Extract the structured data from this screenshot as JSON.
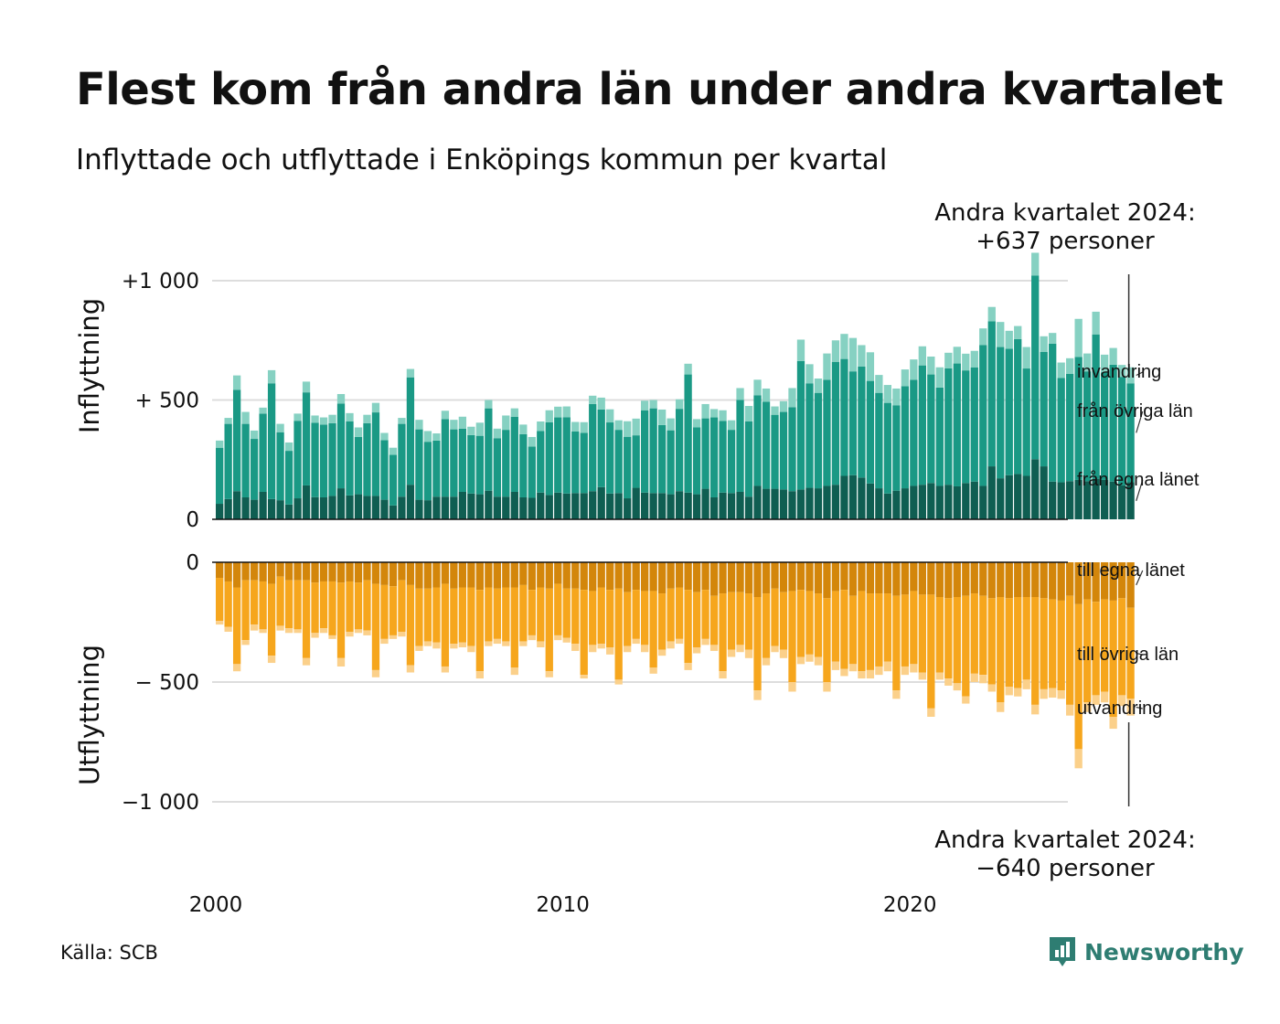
{
  "title": "Flest kom från andra län under andra kvartalet",
  "subtitle": "Inflyttade och utflyttade i Enköpings kommun per kvartal",
  "annotation_top": {
    "line1": "Andra kvartalet 2024:",
    "line2": "+637 personer"
  },
  "annotation_bottom": {
    "line1": "Andra kvartalet 2024:",
    "line2": "−640 personer"
  },
  "source": "Källa: SCB",
  "logo": {
    "text": "Newsworthy",
    "icon": "newsworthy-logo-icon"
  },
  "colors": {
    "in_own_county": "#0f5e52",
    "in_other_counties": "#1a9985",
    "in_immigration": "#86d1c2",
    "out_own_county": "#d3860b",
    "out_other_counties": "#f6a61d",
    "out_emigration": "#fbd08a",
    "grid": "#dddddd",
    "brand": "#2e7d72"
  },
  "chart_data": [
    {
      "type": "bar",
      "stacked": true,
      "panel": "Inflyttning",
      "ylabel": "Inflyttning",
      "yticks": [
        {
          "value": 0,
          "label": "0"
        },
        {
          "value": 500,
          "label": "+  500"
        },
        {
          "value": 1000,
          "label": "+1 000"
        }
      ],
      "ylim": [
        0,
        1000
      ],
      "x_start": {
        "year": 2000,
        "quarter": 1
      },
      "xticks": [
        {
          "year": 2000,
          "label": "2000"
        },
        {
          "year": 2010,
          "label": "2010"
        },
        {
          "year": 2020,
          "label": "2020"
        }
      ],
      "series": [
        {
          "name": "från egna länet",
          "label": "från egna länet",
          "color": "#0f5e52",
          "values": [
            65,
            85,
            118,
            92,
            82,
            115,
            85,
            80,
            62,
            88,
            142,
            93,
            92,
            98,
            130,
            100,
            105,
            98,
            98,
            82,
            58,
            95,
            145,
            82,
            80,
            95,
            95,
            95,
            115,
            108,
            105,
            120,
            95,
            95,
            115,
            92,
            90,
            112,
            102,
            112,
            108,
            110,
            110,
            118,
            135,
            108,
            110,
            88,
            132,
            112,
            110,
            110,
            105,
            118,
            112,
            105,
            128,
            92,
            112,
            110,
            115,
            95,
            140,
            128,
            128,
            125,
            118,
            125,
            132,
            130,
            140,
            145,
            182,
            185,
            175,
            150,
            130,
            108,
            120,
            130,
            140,
            145,
            152,
            140,
            145,
            138,
            152,
            158,
            140,
            222,
            172,
            185,
            190,
            182,
            252,
            222,
            158,
            155,
            160,
            165,
            160,
            170,
            165,
            158,
            142,
            155
          ]
        },
        {
          "name": "från övriga län",
          "label": "från övriga län",
          "color": "#1a9985",
          "values": [
            235,
            315,
            425,
            308,
            255,
            328,
            485,
            285,
            225,
            325,
            390,
            312,
            305,
            305,
            355,
            310,
            240,
            305,
            350,
            250,
            212,
            305,
            450,
            295,
            245,
            235,
            325,
            282,
            265,
            245,
            245,
            345,
            245,
            280,
            315,
            265,
            215,
            258,
            305,
            315,
            320,
            258,
            252,
            365,
            325,
            298,
            265,
            258,
            220,
            345,
            355,
            285,
            268,
            345,
            495,
            280,
            295,
            335,
            300,
            265,
            385,
            315,
            380,
            365,
            310,
            325,
            352,
            538,
            438,
            400,
            445,
            515,
            490,
            435,
            465,
            430,
            400,
            380,
            358,
            428,
            445,
            500,
            455,
            412,
            488,
            515,
            472,
            478,
            590,
            608,
            550,
            530,
            565,
            450,
            770,
            480,
            578,
            437,
            450,
            515,
            460,
            605,
            450,
            490,
            455,
            415
          ]
        },
        {
          "name": "invandring",
          "label": "invandring",
          "color": "#86d1c2",
          "values": [
            30,
            25,
            60,
            50,
            35,
            25,
            55,
            35,
            35,
            30,
            45,
            30,
            30,
            35,
            40,
            35,
            40,
            35,
            40,
            30,
            30,
            25,
            35,
            40,
            45,
            30,
            35,
            40,
            50,
            35,
            55,
            35,
            40,
            60,
            35,
            40,
            40,
            40,
            50,
            45,
            45,
            40,
            45,
            35,
            50,
            55,
            40,
            65,
            70,
            40,
            35,
            65,
            50,
            40,
            45,
            35,
            60,
            35,
            45,
            40,
            50,
            65,
            65,
            55,
            35,
            45,
            80,
            90,
            80,
            60,
            110,
            90,
            105,
            140,
            90,
            120,
            75,
            75,
            70,
            70,
            85,
            80,
            75,
            85,
            65,
            70,
            70,
            70,
            70,
            60,
            105,
            75,
            55,
            90,
            95,
            65,
            45,
            65,
            65,
            160,
            75,
            95,
            75,
            70,
            50,
            67
          ]
        }
      ]
    },
    {
      "type": "bar",
      "stacked": true,
      "panel": "Utflyttning",
      "ylabel": "Utflyttning",
      "yticks": [
        {
          "value": 0,
          "label": "0"
        },
        {
          "value": -500,
          "label": "−  500"
        },
        {
          "value": -1000,
          "label": "−1 000"
        }
      ],
      "ylim": [
        -1000,
        0
      ],
      "series": [
        {
          "name": "till egna länet",
          "label": "till egna länet",
          "color": "#d3860b",
          "values": [
            -65,
            -80,
            -105,
            -75,
            -75,
            -80,
            -90,
            -60,
            -75,
            -75,
            -75,
            -85,
            -80,
            -80,
            -85,
            -80,
            -85,
            -75,
            -90,
            -95,
            -100,
            -75,
            -95,
            -110,
            -110,
            -105,
            -90,
            -110,
            -105,
            -105,
            -115,
            -105,
            -110,
            -105,
            -105,
            -95,
            -115,
            -105,
            -110,
            -90,
            -110,
            -110,
            -115,
            -120,
            -105,
            -115,
            -110,
            -125,
            -115,
            -120,
            -120,
            -130,
            -110,
            -105,
            -115,
            -125,
            -115,
            -140,
            -130,
            -125,
            -125,
            -130,
            -145,
            -130,
            -110,
            -125,
            -120,
            -115,
            -120,
            -130,
            -150,
            -120,
            -115,
            -140,
            -120,
            -130,
            -130,
            -130,
            -140,
            -135,
            -120,
            -135,
            -135,
            -145,
            -150,
            -145,
            -140,
            -130,
            -140,
            -150,
            -145,
            -150,
            -145,
            -145,
            -145,
            -150,
            -155,
            -160,
            -140,
            -175,
            -155,
            -165,
            -155,
            -160,
            -150,
            -190
          ]
        },
        {
          "name": "till övriga län",
          "label": "till övriga län",
          "color": "#f6a61d",
          "values": [
            -180,
            -190,
            -320,
            -250,
            -185,
            -200,
            -300,
            -205,
            -200,
            -205,
            -325,
            -210,
            -195,
            -225,
            -315,
            -210,
            -195,
            -210,
            -360,
            -225,
            -205,
            -215,
            -335,
            -240,
            -220,
            -230,
            -345,
            -230,
            -230,
            -245,
            -340,
            -225,
            -210,
            -225,
            -335,
            -235,
            -190,
            -225,
            -345,
            -215,
            -205,
            -230,
            -355,
            -225,
            -235,
            -240,
            -380,
            -225,
            -205,
            -225,
            -320,
            -235,
            -220,
            -215,
            -305,
            -230,
            -205,
            -205,
            -325,
            -240,
            -220,
            -235,
            -390,
            -270,
            -240,
            -240,
            -380,
            -280,
            -265,
            -265,
            -350,
            -295,
            -330,
            -285,
            -335,
            -320,
            -305,
            -285,
            -395,
            -300,
            -305,
            -325,
            -475,
            -315,
            -335,
            -360,
            -420,
            -335,
            -330,
            -360,
            -440,
            -370,
            -380,
            -345,
            -450,
            -380,
            -370,
            -375,
            -455,
            -605,
            -430,
            -390,
            -385,
            -485,
            -405,
            -380
          ]
        },
        {
          "name": "utvandring",
          "label": "utvandring",
          "color": "#fbd08a",
          "values": [
            -15,
            -20,
            -30,
            -20,
            -25,
            -15,
            -30,
            -20,
            -20,
            -15,
            -30,
            -20,
            -20,
            -15,
            -35,
            -20,
            -15,
            -20,
            -30,
            -20,
            -15,
            -20,
            -30,
            -20,
            -20,
            -25,
            -25,
            -20,
            -20,
            -25,
            -30,
            -20,
            -20,
            -20,
            -30,
            -20,
            -20,
            -25,
            -25,
            -20,
            -20,
            -30,
            -15,
            -30,
            -20,
            -30,
            -20,
            -25,
            -20,
            -30,
            -25,
            -25,
            -30,
            -20,
            -30,
            -25,
            -25,
            -25,
            -30,
            -30,
            -30,
            -35,
            -40,
            -30,
            -25,
            -35,
            -40,
            -30,
            -30,
            -35,
            -40,
            -35,
            -30,
            -30,
            -30,
            -35,
            -35,
            -40,
            -35,
            -35,
            -35,
            -30,
            -35,
            -30,
            -30,
            -30,
            -30,
            -35,
            -35,
            -30,
            -40,
            -35,
            -35,
            -40,
            -40,
            -40,
            -40,
            -35,
            -45,
            -80,
            -40,
            -40,
            -45,
            -50,
            -45,
            -70
          ]
        }
      ]
    }
  ]
}
